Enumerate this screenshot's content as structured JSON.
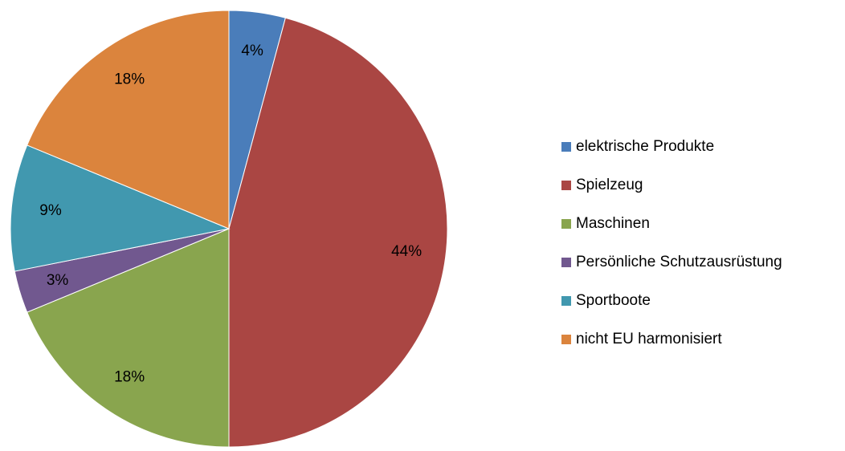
{
  "chart_data": {
    "type": "pie",
    "categories": [
      "elektrische Produkte",
      "Spielzeug",
      "Maschinen",
      "Persönliche Schutzausrüstung",
      "Sportboote",
      "nicht EU harmonisiert"
    ],
    "values": [
      4,
      44,
      18,
      3,
      9,
      18
    ],
    "value_labels": [
      "4%",
      "44%",
      "18%",
      "3%",
      "9%",
      "18%"
    ],
    "colors": [
      "#4a7dba",
      "#aa4643",
      "#89a54e",
      "#71588f",
      "#4198af",
      "#db843d"
    ],
    "legend": "right"
  }
}
